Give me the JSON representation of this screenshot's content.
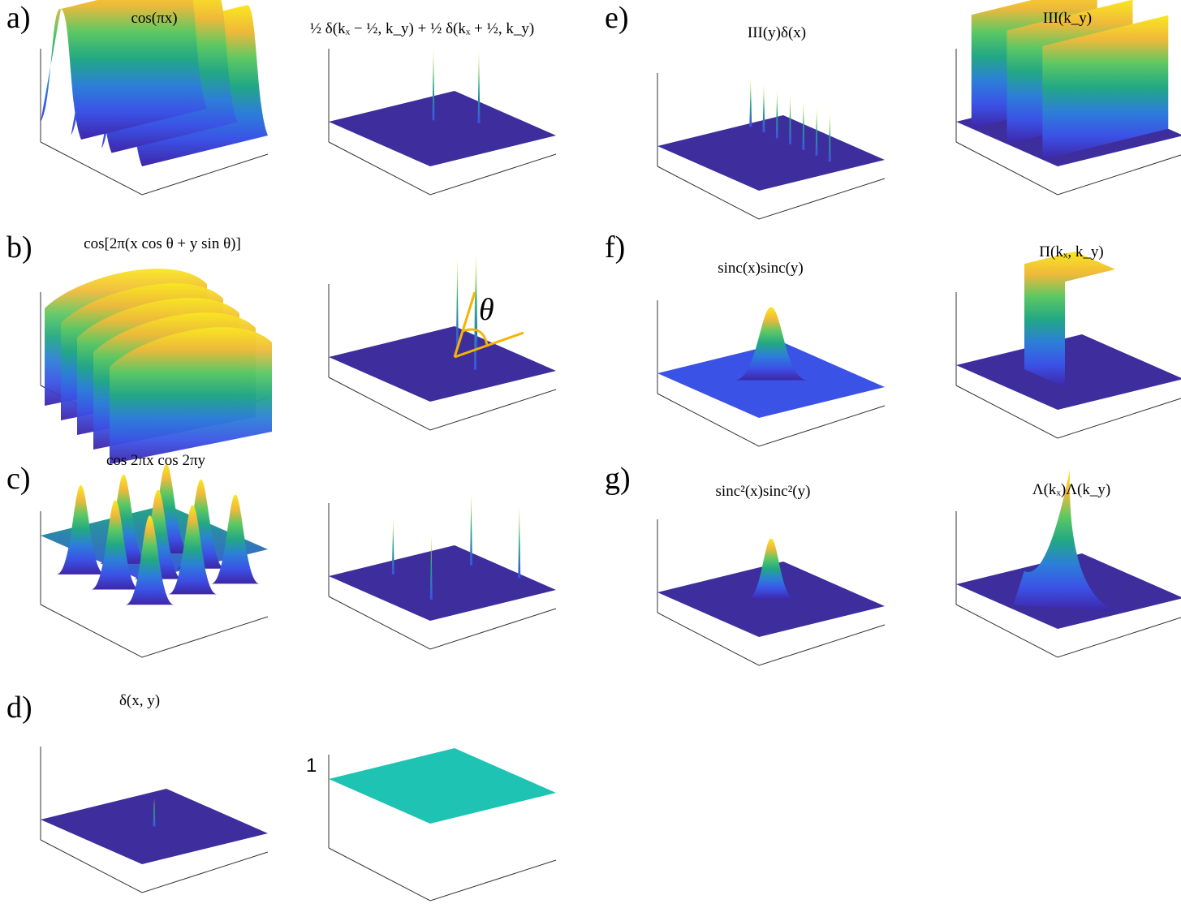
{
  "colors": {
    "floor": "#3e2d9c",
    "yellow": "#f9e721",
    "green": "#22a884",
    "blue": "#3b52e6",
    "deep": "#3e26a8",
    "cyan": "#1ec3b4",
    "annotation": "#f5b400"
  },
  "rows": [
    {
      "letter": "a)",
      "left": {
        "title": "cos(πx)",
        "kind": "ridges"
      },
      "right": {
        "title": "½ δ(kₓ − ½, k_y) + ½ δ(kₓ + ½, k_y)",
        "kind": "two-spikes"
      }
    },
    {
      "letter": "b)",
      "left": {
        "title": "cos[2π(x cos θ + y sin θ)]",
        "kind": "tilted-ridges"
      },
      "right": {
        "title": "",
        "kind": "tilted-spikes",
        "annotation": "θ"
      }
    },
    {
      "letter": "c)",
      "left": {
        "title": "cos 2πx cos 2πy",
        "kind": "egg-carton"
      },
      "right": {
        "title": "",
        "kind": "four-spikes"
      }
    },
    {
      "letter": "d)",
      "left": {
        "title": "δ(x, y)",
        "kind": "center-spike"
      },
      "right": {
        "title": "",
        "kind": "constant",
        "value_label": "1"
      }
    },
    {
      "letter": "e)",
      "left": {
        "title": "III(y)δ(x)",
        "kind": "spike-row"
      },
      "right": {
        "title": "III(k_y)",
        "kind": "walls"
      }
    },
    {
      "letter": "f)",
      "left": {
        "title": "sinc(x)sinc(y)",
        "kind": "sinc"
      },
      "right": {
        "title": "Π(kₓ, k_y)",
        "kind": "box"
      }
    },
    {
      "letter": "g)",
      "left": {
        "title": "sinc²(x)sinc²(y)",
        "kind": "sinc2"
      },
      "right": {
        "title": "Λ(kₓ)Λ(k_y)",
        "kind": "pyramid"
      }
    }
  ]
}
